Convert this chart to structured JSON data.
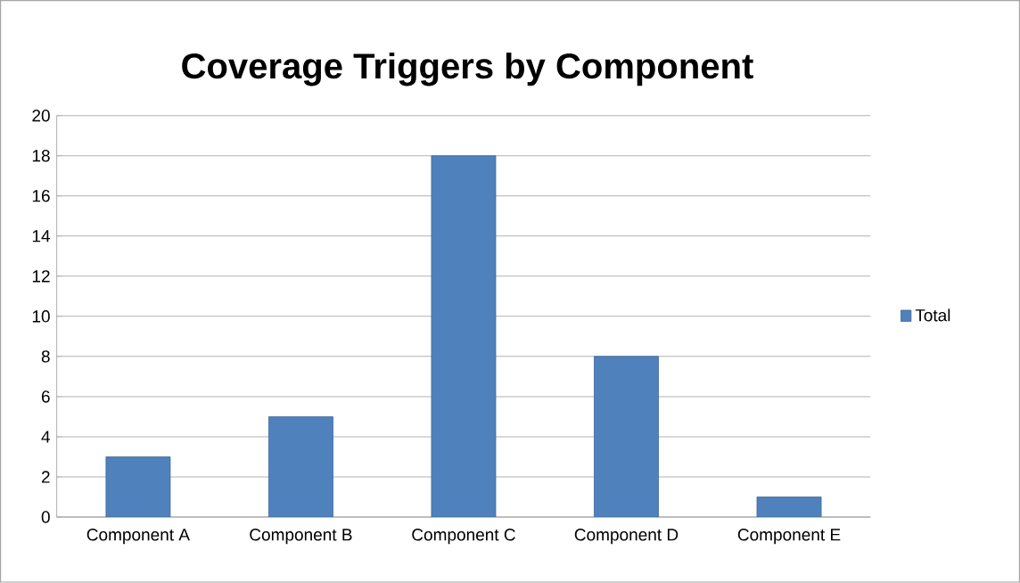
{
  "chart_data": {
    "type": "bar",
    "title": "Coverage Triggers by Component",
    "categories": [
      "Component A",
      "Component B",
      "Component C",
      "Component D",
      "Component E"
    ],
    "series": [
      {
        "name": "Total",
        "color": "#4f81bd",
        "values": [
          3,
          5,
          18,
          8,
          1
        ]
      }
    ],
    "ylim": [
      0,
      20
    ],
    "yticks": [
      0,
      2,
      4,
      6,
      8,
      10,
      12,
      14,
      16,
      18,
      20
    ],
    "grid": "y",
    "legend": "right"
  }
}
